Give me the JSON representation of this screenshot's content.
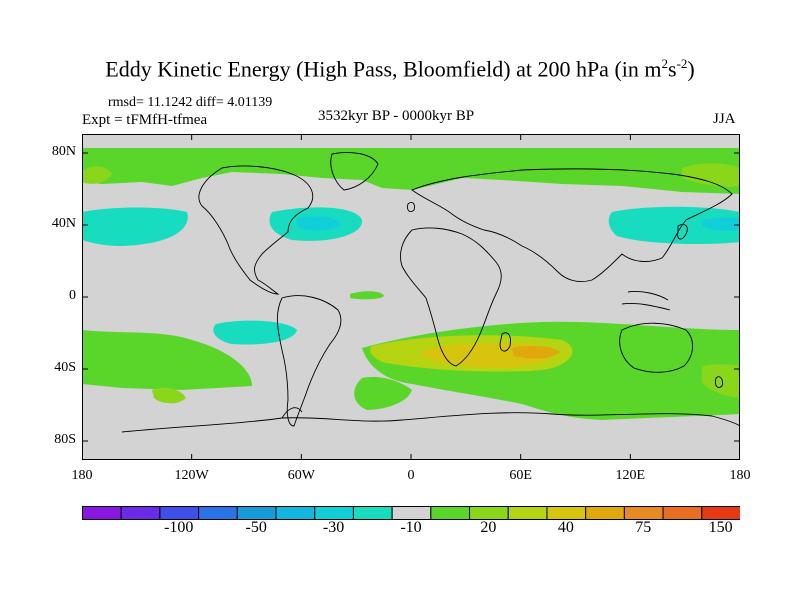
{
  "title": {
    "main": "Eddy Kinetic Energy (High Pass, Bloomfield) at 200 hPa (in m",
    "sup1": "2",
    "mid": "s",
    "sup2": "-2",
    "end": ")"
  },
  "stats": "rmsd= 11.1242 diff= 4.01139",
  "experiment": "Expt = tFMfH-tfmea",
  "period": "3532kyr BP - 0000kyr BP",
  "season": "JJA",
  "lat_labels": [
    {
      "text": "80N",
      "lat": 80
    },
    {
      "text": "40N",
      "lat": 40
    },
    {
      "text": "0",
      "lat": 0
    },
    {
      "text": "40S",
      "lat": -40
    },
    {
      "text": "80S",
      "lat": -80
    }
  ],
  "lon_labels": [
    {
      "text": "180",
      "lon": -180
    },
    {
      "text": "120W",
      "lon": -120
    },
    {
      "text": "60W",
      "lon": -60
    },
    {
      "text": "0",
      "lon": 0
    },
    {
      "text": "60E",
      "lon": 60
    },
    {
      "text": "120E",
      "lon": 120
    },
    {
      "text": "180",
      "lon": 180
    }
  ],
  "colors": {
    "background": "#d3d3d3",
    "levels": [
      "#8a17e0",
      "#6a2ae6",
      "#3f4fe8",
      "#2a73e6",
      "#169ad8",
      "#13b6e0",
      "#10cfd9",
      "#18dcc0",
      "#d3d3d3",
      "#5ad62b",
      "#8ad61a",
      "#b6d412",
      "#d6c40e",
      "#e0a80c",
      "#e88a22",
      "#e86e22",
      "#e63a14"
    ]
  },
  "colorbar_labels": [
    "-100",
    "-50",
    "-30",
    "-10",
    "20",
    "40",
    "75",
    "150"
  ]
}
